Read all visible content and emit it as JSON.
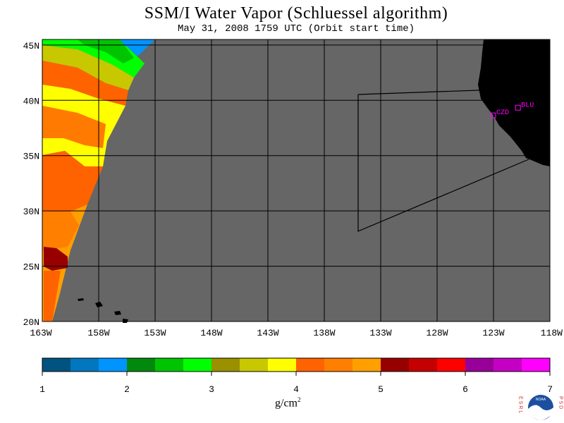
{
  "title": "SSM/I Water Vapor (Schluessel algorithm)",
  "subtitle": "May 31, 2008  1759 UTC  (Orbit start time)",
  "units_base": "g/cm",
  "units_exp": "2",
  "map": {
    "lon_labels": [
      "163W",
      "158W",
      "153W",
      "148W",
      "143W",
      "138W",
      "133W",
      "128W",
      "123W",
      "118W"
    ],
    "lat_labels": [
      "45N",
      "40N",
      "35N",
      "30N",
      "25N",
      "20N"
    ],
    "lon_range": [
      -163,
      -118
    ],
    "lat_range": [
      20,
      45.5
    ],
    "stations": [
      {
        "id": "CZD",
        "label": "CZD",
        "lon": -123.0,
        "lat": 38.6
      },
      {
        "id": "BLU",
        "label": "BLU",
        "lon": -120.8,
        "lat": 39.3
      }
    ],
    "colors": {
      "no_data": "#666666",
      "land": "#000000",
      "grid": "#000000",
      "station": "#ff00ff"
    }
  },
  "colorbar": {
    "ticks": [
      "1",
      "2",
      "3",
      "4",
      "5",
      "6",
      "7"
    ],
    "colors": [
      "#00537f",
      "#0077bf",
      "#0094ff",
      "#00890c",
      "#00c400",
      "#00ff00",
      "#9a9000",
      "#c8c800",
      "#ffff00",
      "#ff6300",
      "#ff7f00",
      "#ff9f00",
      "#980000",
      "#c40000",
      "#ff0000",
      "#990099",
      "#c400c4",
      "#ff00ff"
    ]
  },
  "logo": {
    "left_text": "ESRL",
    "right_text": "PSD",
    "center_text": "NOAA"
  }
}
